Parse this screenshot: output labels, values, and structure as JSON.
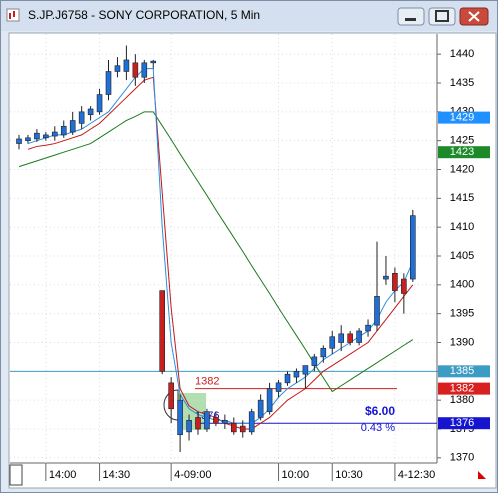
{
  "chart_data": {
    "type": "candlestick",
    "title": "S.JP.J6758 - SONY CORPORATION, 5 Min",
    "categories": [
      null,
      null,
      null,
      "14:00",
      null,
      null,
      null,
      null,
      null,
      "14:30",
      null,
      null,
      null,
      null,
      null,
      null,
      null,
      "4-09:00",
      null,
      null,
      null,
      null,
      null,
      null,
      null,
      null,
      null,
      null,
      null,
      "10:00",
      null,
      null,
      null,
      null,
      null,
      "10:30",
      null,
      null,
      null,
      null,
      null,
      null,
      "4-12:30",
      null,
      null
    ],
    "open": [
      1424.5,
      1425,
      1425.3,
      1425.5,
      1425.8,
      1426,
      1426.5,
      1428,
      1429.5,
      1430,
      1433,
      1437,
      1437,
      1438.5,
      1436,
      1438.5,
      1399,
      1383,
      1374,
      1374.5,
      1377,
      1375,
      1377,
      1376,
      1376,
      1375.5,
      1374.5,
      1377,
      1378,
      1381.5,
      1383,
      1384,
      1384.5,
      1386,
      1387.5,
      1389,
      1390,
      1391.5,
      1390,
      1392,
      1393,
      1401,
      1402,
      1401,
      1401
    ],
    "high": [
      1426,
      1426,
      1427,
      1426.5,
      1427.5,
      1428.5,
      1430,
      1431,
      1431,
      1434,
      1439,
      1439.5,
      1441.5,
      1440,
      1439,
      1439,
      1399,
      1384,
      1381,
      1377.5,
      1378,
      1378.5,
      1378,
      1377.5,
      1377,
      1376.5,
      1378.5,
      1381,
      1383,
      1383.5,
      1385,
      1385.5,
      1386,
      1388,
      1389.5,
      1392,
      1393,
      1392,
      1392.5,
      1394,
      1407.5,
      1405,
      1403,
      1402,
      1413
    ],
    "low": [
      1423.5,
      1424.5,
      1424.8,
      1425,
      1425,
      1425.5,
      1426,
      1427,
      1428.5,
      1429.5,
      1432,
      1436,
      1435.5,
      1434.5,
      1435,
      1437.5,
      1384.5,
      1376,
      1371,
      1373,
      1374,
      1374.5,
      1375.5,
      1375,
      1374,
      1373.5,
      1374,
      1376.5,
      1377.5,
      1380.5,
      1382.5,
      1383,
      1382,
      1385,
      1386.5,
      1388,
      1388.5,
      1389.5,
      1389.5,
      1391,
      1392,
      1400,
      1397,
      1395,
      1400.5
    ],
    "close": [
      1425.3,
      1425.5,
      1426.3,
      1426,
      1426.5,
      1427.5,
      1428.5,
      1430,
      1430.5,
      1433,
      1437,
      1438,
      1439,
      1436,
      1438.5,
      1438.8,
      1385,
      1378.5,
      1380,
      1376.5,
      1375,
      1378,
      1376,
      1376.5,
      1374.5,
      1374.5,
      1378,
      1380,
      1382,
      1383,
      1384.5,
      1385,
      1386,
      1387.5,
      1389,
      1391,
      1391.5,
      1390,
      1392,
      1393,
      1398,
      1401.5,
      1399,
      1398.5,
      1412
    ],
    "up_color": "#1f6fd6",
    "down_color": "#c8201e",
    "overlays": [
      {
        "color": "#1e7a1e",
        "values": [
          1420.5,
          1421,
          1421.5,
          1422,
          1422.5,
          1423,
          1423.5,
          1424,
          1424.5,
          1425.5,
          1426.5,
          1427.5,
          1428.5,
          1429.2,
          1430,
          1430,
          1427.6,
          1425.2,
          1422.7,
          1420.3,
          1417.9,
          1415.5,
          1413,
          1410.6,
          1408.2,
          1405.8,
          1403.3,
          1400.9,
          1398.5,
          1396,
          1393.6,
          1391.2,
          1388.8,
          1386.3,
          1383.9,
          1381.5,
          1382.5,
          1383.5,
          1384.5,
          1385.5,
          1386.5,
          1387.5,
          1388.5,
          1389.5,
          1390.5
        ]
      },
      {
        "color": "#c41818",
        "values": [
          null,
          1423.5,
          1424,
          1424.2,
          1424.5,
          1425,
          1425.5,
          1426,
          1427,
          1428,
          1429.5,
          1431,
          1432.5,
          1434,
          1435.5,
          1436,
          1416,
          1396,
          1382,
          1379,
          1378,
          1377.5,
          1377,
          1376,
          1375.5,
          1375,
          1375,
          1376,
          1377,
          1378.5,
          1380,
          1381,
          1382,
          1383.5,
          1385,
          1386,
          1387,
          1388,
          1389,
          1390,
          1392,
          1394,
          1396,
          1398,
          1400
        ]
      },
      {
        "color": "#2b8fe0",
        "values": [
          null,
          1424.5,
          1425,
          1425.5,
          1426,
          1426,
          1426.5,
          1427,
          1428,
          1429,
          1430,
          1432,
          1434,
          1436,
          1437.5,
          1437.5,
          1410,
          1390,
          1381,
          1378.5,
          1377.5,
          1377,
          1376.5,
          1376.5,
          1376,
          1376,
          1376,
          1377,
          1378.5,
          1380.5,
          1382,
          1383,
          1384,
          1385.5,
          1387,
          1388,
          1389,
          1390,
          1391,
          1392,
          1394,
          1397,
          1399,
          1400.5,
          1404
        ]
      }
    ],
    "ylim": [
      1369.1,
      1443.5
    ],
    "yticks": [
      1370,
      1375,
      1380,
      1385,
      1390,
      1395,
      1400,
      1405,
      1410,
      1415,
      1420,
      1425,
      1430,
      1435,
      1440
    ],
    "grid": true,
    "price_markers": [
      {
        "value": 1429,
        "color": "#1e90ff"
      },
      {
        "value": 1423,
        "color": "#1d8a2a"
      },
      {
        "value": 1385,
        "color": "#3d9cc4"
      },
      {
        "value": 1382,
        "color": "#d82020"
      },
      {
        "value": 1376,
        "color": "#1515d0"
      }
    ],
    "levels": [
      {
        "value": 1385,
        "color": "#3d9cc4",
        "inline_label": false
      },
      {
        "value": 1382,
        "color": "#c82020",
        "inline_label": true
      },
      {
        "value": 1376,
        "color": "#1515d0",
        "inline_label": true
      }
    ],
    "annotations": [
      "$6.00",
      "0.43 %"
    ]
  }
}
